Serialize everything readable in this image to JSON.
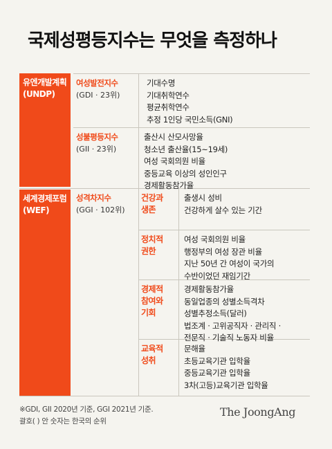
{
  "title": "국제성평등지수는 무엇을 측정하나",
  "orgs": [
    {
      "name": "유엔개발계획",
      "abbr": "(UNDP)"
    },
    {
      "name": "세계경제포럼",
      "abbr": "(WEF)"
    }
  ],
  "indices": [
    {
      "name": "여성발전지수",
      "sub": "(GDI · 23위)",
      "items": [
        "기대수명",
        "기대취학연수",
        "평균취학연수",
        "추정 1인당 국민소득(GNI)"
      ]
    },
    {
      "name": "성불평등지수",
      "sub": "(GII · 23위)",
      "items": [
        "출산시 산모사망율",
        "청소년 출산율(15~19세)",
        "여성 국회의원 비율",
        "중등교육 이상의 성인인구",
        "경제활동참가율"
      ]
    },
    {
      "name": "성격차지수",
      "sub": "(GGI · 102위)"
    }
  ],
  "ggi_categories": [
    {
      "lines": [
        "건강과",
        "생존"
      ],
      "items": [
        "출생시 성비",
        "건강하게 살수 있는 기간"
      ]
    },
    {
      "lines": [
        "정치적",
        "권한"
      ],
      "items": [
        "여성 국회의원 비율",
        "행정부의 여성 장관 비율",
        "지난 50년 간 여성이 국가의",
        "수반이었던 재임기간"
      ]
    },
    {
      "lines": [
        "경제적",
        "참여와",
        "기회"
      ],
      "items": [
        "경제활동참가율",
        "동일업종의 성별소득격차",
        "성별추정소득(달러)",
        "법조계 · 고위공직자 · 관리직 ·",
        "전문직 ·  기술직 노동자 비율"
      ]
    },
    {
      "lines": [
        "교육적",
        "성취"
      ],
      "items": [
        "문해율",
        "초등교육기관 입학율",
        "중등교육기관 입학율",
        "3차(고등)교육기관 입학율"
      ]
    }
  ],
  "footnote": [
    "※GDI, GII 2020년 기준, GGI 2021년 기준.",
    "괄호( ) 안 숫자는 한국의 순위"
  ],
  "logo": "The JoongAng",
  "colors": {
    "accent": "#f04a1a",
    "background": "#f5f4ef"
  }
}
